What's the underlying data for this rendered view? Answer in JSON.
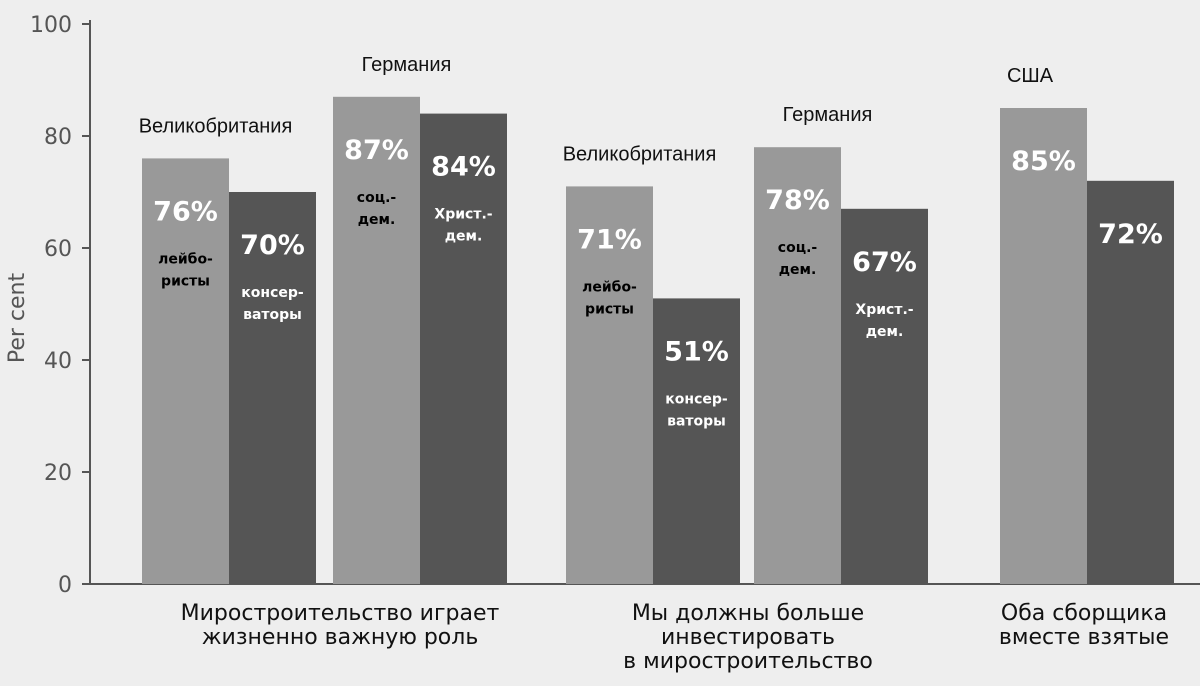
{
  "chart_data": {
    "type": "bar",
    "title": "",
    "ylabel": "Per cent",
    "ylim": [
      0,
      100
    ],
    "yticks": [
      0,
      20,
      40,
      60,
      80,
      100
    ],
    "colors": {
      "light": "#999999",
      "dark": "#555555",
      "axis": "#555555"
    },
    "categories": [
      {
        "label": [
          "Миростроительство играет",
          "жизненно важную роль"
        ]
      },
      {
        "label": [
          "Мы должны больше",
          "инвестировать",
          "в миростроительство"
        ]
      },
      {
        "label": [
          "Оба сборщика",
          "вместе взятые"
        ]
      }
    ],
    "groups": [
      {
        "country": "Великобритания",
        "category": 0,
        "bars": [
          {
            "value": 76,
            "label": "76%",
            "tone": "light",
            "sub": [
              "лейбо-",
              "ристы"
            ]
          },
          {
            "value": 70,
            "label": "70%",
            "tone": "dark",
            "sub": [
              "консер-",
              "ваторы"
            ]
          }
        ]
      },
      {
        "country": "Германия",
        "category": 0,
        "bars": [
          {
            "value": 87,
            "label": "87%",
            "tone": "light",
            "sub": [
              "соц.-",
              "дем."
            ]
          },
          {
            "value": 84,
            "label": "84%",
            "tone": "dark",
            "sub": [
              "Христ.-",
              "дем."
            ]
          }
        ]
      },
      {
        "country": "Великобритания",
        "category": 1,
        "bars": [
          {
            "value": 71,
            "label": "71%",
            "tone": "light",
            "sub": [
              "лейбо-",
              "ристы"
            ]
          },
          {
            "value": 51,
            "label": "51%",
            "tone": "dark",
            "sub": [
              "консер-",
              "ваторы"
            ]
          }
        ]
      },
      {
        "country": "Германия",
        "category": 1,
        "bars": [
          {
            "value": 78,
            "label": "78%",
            "tone": "light",
            "sub": [
              "соц.-",
              "дем."
            ]
          },
          {
            "value": 67,
            "label": "67%",
            "tone": "dark",
            "sub": [
              "Христ.-",
              "дем."
            ]
          }
        ]
      },
      {
        "country": "США",
        "category": 2,
        "bars": [
          {
            "value": 85,
            "label": "85%",
            "tone": "light",
            "sub": []
          },
          {
            "value": 72,
            "label": "72%",
            "tone": "dark",
            "sub": []
          }
        ]
      }
    ]
  }
}
